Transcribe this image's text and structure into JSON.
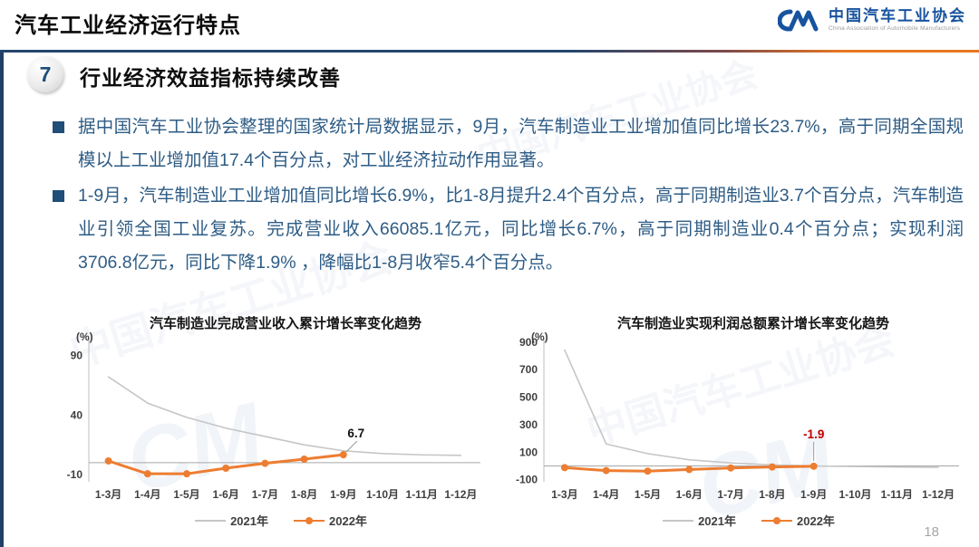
{
  "header": {
    "title": "汽车工业经济运行特点",
    "logo": {
      "name": "中国汽车工业协会",
      "subtitle": "China Association of Automobile Manufacturers"
    }
  },
  "section": {
    "number": "7",
    "heading": "行业经济效益指标持续改善"
  },
  "bullets": [
    {
      "text": "据中国汽车工业协会整理的国家统计局数据显示，9月，汽车制造业工业增加值同比增长23.7%，高于同期全国规模以上工业增加值17.4个百分点，对工业经济拉动作用显著。"
    },
    {
      "text": "1-9月，汽车制造业工业增加值同比增长6.9%，比1-8月提升2.4个百分点，高于同期制造业3.7个百分点，汽车制造业引领全国工业复苏。完成营业收入66085.1亿元，同比增长6.7%，高于同期制造业0.4个百分点；实现利润3706.8亿元，同比下降1.9% ，降幅比1-8月收窄5.4个百分点。"
    }
  ],
  "watermark": {
    "text": "中国汽车工业协会",
    "glyph": "CM"
  },
  "page_number": "18",
  "colors": {
    "accent_blue": "#1f4e79",
    "accent_orange": "#e87722",
    "series_2021": "#c6c6c6",
    "series_2022": "#ed7d31",
    "annotation_red": "#c00000",
    "body_text": "#2e5c85"
  },
  "chart_data": [
    {
      "type": "line",
      "title": "汽车制造业完成营业收入累计增长率变化趋势",
      "unit_label": "(%)",
      "categories": [
        "1-3月",
        "1-4月",
        "1-5月",
        "1-6月",
        "1-7月",
        "1-8月",
        "1-9月",
        "1-10月",
        "1-11月",
        "1-12月"
      ],
      "series": [
        {
          "name": "2021年",
          "color": "#c6c6c6",
          "marker": false,
          "values": [
            72,
            50,
            38,
            29,
            22,
            15,
            10,
            7.7,
            6.6,
            6.2
          ]
        },
        {
          "name": "2022年",
          "color": "#ed7d31",
          "marker": true,
          "values": [
            1.5,
            -9.3,
            -9.3,
            -4.6,
            -0.5,
            3.0,
            6.7
          ]
        }
      ],
      "ylim": [
        -16,
        104
      ],
      "yticks": [
        90,
        40,
        -10
      ],
      "grid": false,
      "legend_position": "bottom",
      "annotation": {
        "text": "6.7",
        "series": 1,
        "index": 6,
        "color": "#141414",
        "leader": "diagonal"
      }
    },
    {
      "type": "line",
      "title": "汽车制造业实现利润总额累计增长率变化趋势",
      "unit_label": "(%)",
      "categories": [
        "1-3月",
        "1-4月",
        "1-5月",
        "1-6月",
        "1-7月",
        "1-8月",
        "1-9月",
        "1-10月",
        "1-11月",
        "1-12月"
      ],
      "series": [
        {
          "name": "2021年",
          "color": "#c6c6c6",
          "marker": false,
          "values": [
            843,
            160,
            90,
            45,
            22,
            8,
            0,
            -4,
            -8,
            -10
          ]
        },
        {
          "name": "2022年",
          "color": "#ed7d31",
          "marker": true,
          "values": [
            -11.9,
            -33.4,
            -37.5,
            -25.5,
            -14.4,
            -7.3,
            -1.9
          ]
        }
      ],
      "ylim": [
        -115,
        925
      ],
      "yticks": [
        900,
        700,
        500,
        300,
        100,
        -100
      ],
      "grid": false,
      "legend_position": "bottom",
      "annotation": {
        "text": "-1.9",
        "series": 1,
        "index": 6,
        "color": "#c00000",
        "leader": "vertical"
      }
    }
  ]
}
